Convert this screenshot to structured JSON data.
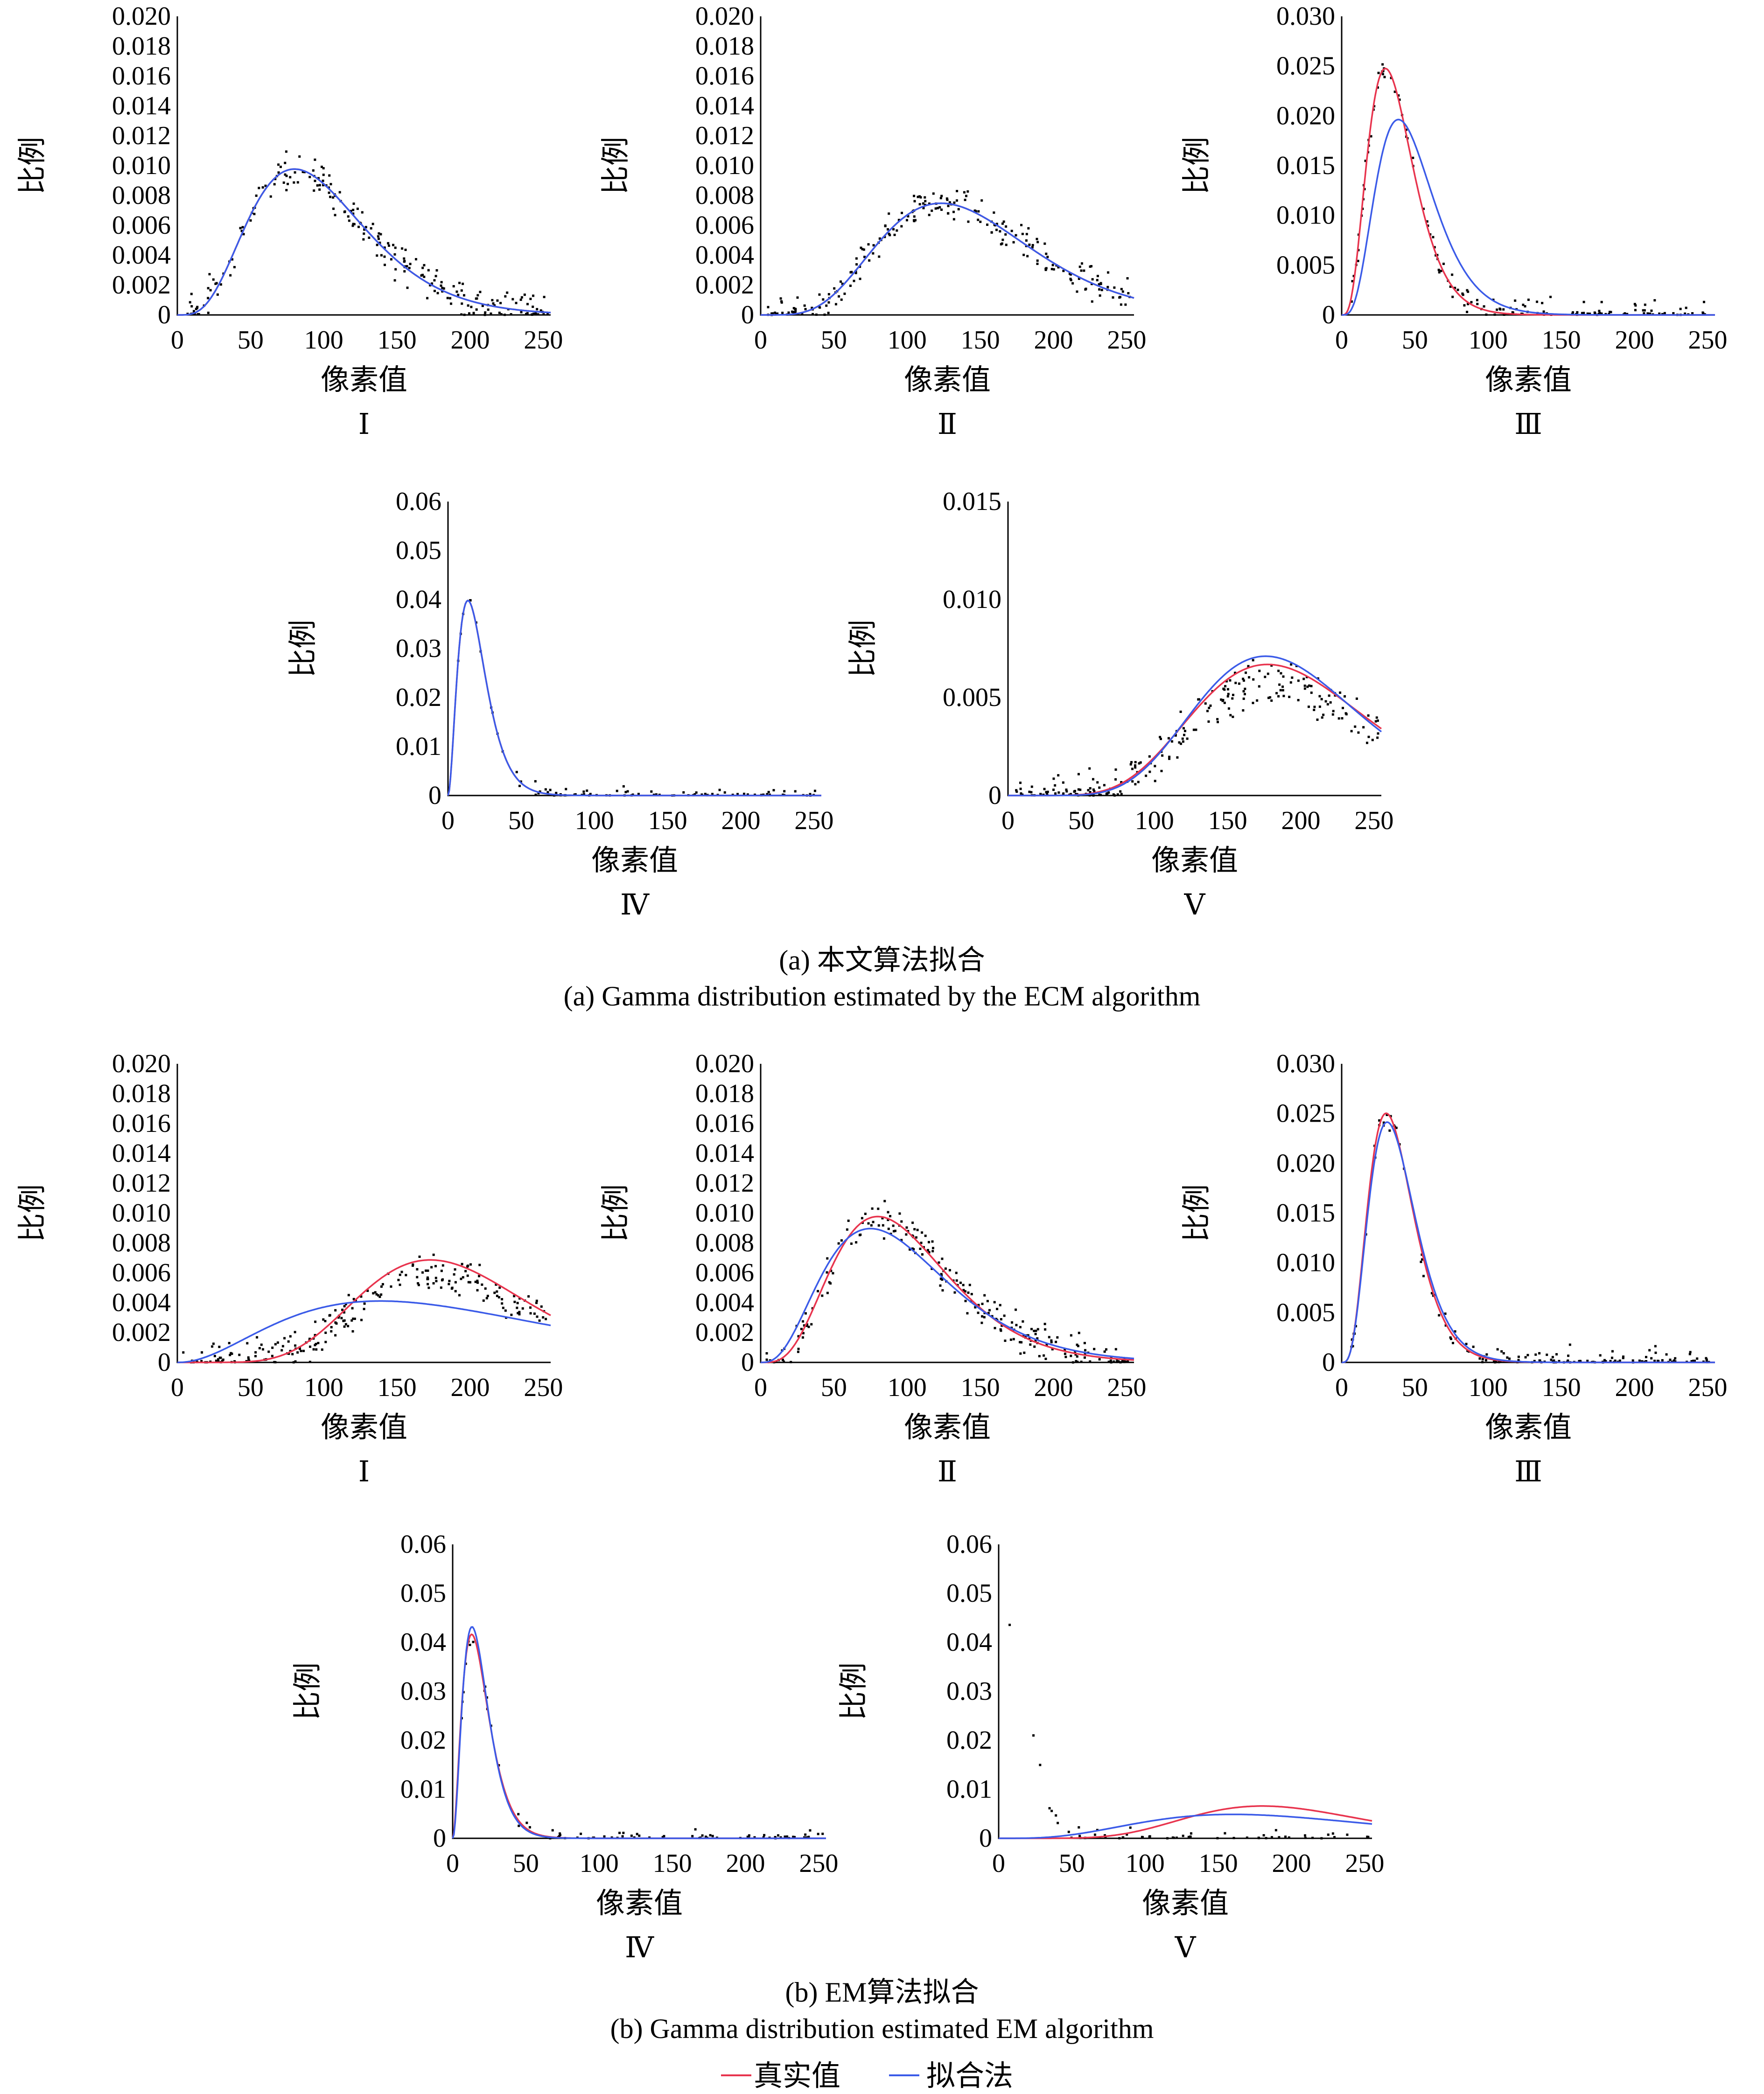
{
  "figure": {
    "caption_a_cn": "(a) 本文算法拟合",
    "caption_a_en": "(a) Gamma distribution estimated by the ECM algorithm",
    "caption_b_cn": "(b) EM算法拟合",
    "caption_b_en": "(b) Gamma distribution estimated EM algorithm"
  },
  "legend": {
    "items": [
      {
        "label": "真实值",
        "color": "#e8344e"
      },
      {
        "label": "拟合法",
        "color": "#3b5be8"
      }
    ]
  },
  "chart_data": [
    {
      "id": "a1",
      "type": "line",
      "sublabel": "Ⅰ",
      "xlabel": "像素值",
      "ylabel": "比例",
      "xlim": [
        0,
        255
      ],
      "ylim": [
        0,
        0.02
      ],
      "xticks": [
        "0",
        "50",
        "100",
        "150",
        "200",
        "250"
      ],
      "yticks": [
        "0",
        "0.002",
        "0.004",
        "0.006",
        "0.008",
        "0.010",
        "0.012",
        "0.014",
        "0.016",
        "0.018",
        "0.020"
      ],
      "series": [
        {
          "color": "#e8344e",
          "gamma": {
            "k": 5.0,
            "theta": 20.0
          }
        },
        {
          "color": "#3b5be8",
          "gamma": {
            "k": 5.0,
            "theta": 20.0
          }
        }
      ],
      "scatter": {
        "gamma": {
          "k": 5.0,
          "theta": 20.0
        },
        "noise": 0.0012,
        "n": 230,
        "seed": 11
      }
    },
    {
      "id": "a2",
      "type": "line",
      "sublabel": "Ⅱ",
      "xlabel": "像素值",
      "ylabel": "比例",
      "xlim": [
        0,
        255
      ],
      "ylim": [
        0,
        0.02
      ],
      "xticks": [
        "0",
        "50",
        "100",
        "150",
        "200",
        "250"
      ],
      "yticks": [
        "0",
        "0.002",
        "0.004",
        "0.006",
        "0.008",
        "0.010",
        "0.012",
        "0.014",
        "0.016",
        "0.018",
        "0.020"
      ],
      "series": [
        {
          "color": "#e8344e",
          "gamma": {
            "k": 6.5,
            "theta": 22.4
          }
        },
        {
          "color": "#3b5be8",
          "gamma": {
            "k": 6.5,
            "theta": 22.4
          }
        }
      ],
      "scatter": {
        "gamma": {
          "k": 6.5,
          "theta": 22.4
        },
        "noise": 0.0011,
        "n": 230,
        "seed": 23
      }
    },
    {
      "id": "a3",
      "type": "line",
      "sublabel": "Ⅲ",
      "xlabel": "像素值",
      "ylabel": "比例",
      "xlim": [
        0,
        255
      ],
      "ylim": [
        0,
        0.03
      ],
      "xticks": [
        "0",
        "50",
        "100",
        "150",
        "200",
        "250"
      ],
      "yticks": [
        "0",
        "0.005",
        "0.010",
        "0.015",
        "0.020",
        "0.025",
        "0.030"
      ],
      "series": [
        {
          "color": "#e8344e",
          "gamma": {
            "k": 4.6,
            "theta": 8.3
          }
        },
        {
          "color": "#3b5be8",
          "gamma": {
            "k": 4.8,
            "theta": 10.2
          }
        }
      ],
      "scatter": {
        "gamma": {
          "k": 4.6,
          "theta": 8.3
        },
        "noise": 0.0013,
        "n": 150,
        "seed": 37
      }
    },
    {
      "id": "a4",
      "type": "line",
      "sublabel": "Ⅳ",
      "xlabel": "像素值",
      "ylabel": "比例",
      "xlim": [
        0,
        255
      ],
      "ylim": [
        0,
        0.06
      ],
      "xticks": [
        "0",
        "50",
        "100",
        "150",
        "200",
        "250"
      ],
      "yticks": [
        "0",
        "0.01",
        "0.02",
        "0.03",
        "0.04",
        "0.05",
        "0.06"
      ],
      "series": [
        {
          "color": "#e8344e",
          "gamma": {
            "k": 3.0,
            "theta": 6.8
          }
        },
        {
          "color": "#3b5be8",
          "gamma": {
            "k": 3.0,
            "theta": 6.8
          }
        }
      ],
      "scatter": {
        "gamma": {
          "k": 3.0,
          "theta": 6.8
        },
        "noise": 0.0015,
        "n": 90,
        "seed": 41
      }
    },
    {
      "id": "a5",
      "type": "line",
      "sublabel": "Ⅴ",
      "xlabel": "像素值",
      "ylabel": "比例",
      "xlim": [
        0,
        255
      ],
      "ylim": [
        0,
        0.015
      ],
      "xticks": [
        "0",
        "50",
        "100",
        "150",
        "200",
        "250"
      ],
      "yticks": [
        "0",
        "0.005",
        "0.010",
        "0.015"
      ],
      "series": [
        {
          "color": "#e8344e",
          "gamma": {
            "k": 10.0,
            "theta": 19.7
          }
        },
        {
          "color": "#3b5be8",
          "gamma": {
            "k": 11.0,
            "theta": 17.6
          }
        }
      ],
      "scatter": {
        "gamma": {
          "k": 10.0,
          "theta": 19.7
        },
        "noise": 0.0012,
        "scale": 0.88,
        "n": 230,
        "seed": 53
      }
    },
    {
      "id": "b1",
      "type": "line",
      "sublabel": "Ⅰ",
      "xlabel": "像素值",
      "ylabel": "比例",
      "xlim": [
        0,
        255
      ],
      "ylim": [
        0,
        0.02
      ],
      "xticks": [
        "0",
        "50",
        "100",
        "150",
        "200",
        "250"
      ],
      "yticks": [
        "0",
        "0.002",
        "0.004",
        "0.006",
        "0.008",
        "0.010",
        "0.012",
        "0.014",
        "0.016",
        "0.018",
        "0.020"
      ],
      "series": [
        {
          "color": "#e8344e",
          "gamma": {
            "k": 10.0,
            "theta": 19.2
          }
        },
        {
          "color": "#3b5be8",
          "gamma": {
            "k": 3.2,
            "theta": 63.0
          }
        }
      ],
      "scatter": {
        "gamma": {
          "k": 10.0,
          "theta": 19.2
        },
        "noise": 0.0012,
        "scale": 0.88,
        "n": 230,
        "seed": 61
      }
    },
    {
      "id": "b2",
      "type": "line",
      "sublabel": "Ⅱ",
      "xlabel": "像素值",
      "ylabel": "比例",
      "xlim": [
        0,
        255
      ],
      "ylim": [
        0,
        0.02
      ],
      "xticks": [
        "0",
        "50",
        "100",
        "150",
        "200",
        "250"
      ],
      "yticks": [
        "0",
        "0.002",
        "0.004",
        "0.006",
        "0.008",
        "0.010",
        "0.012",
        "0.014",
        "0.016",
        "0.018",
        "0.020"
      ],
      "series": [
        {
          "color": "#e8344e",
          "gamma": {
            "k": 5.0,
            "theta": 20.0
          }
        },
        {
          "color": "#3b5be8",
          "gamma": {
            "k": 4.0,
            "theta": 25.0
          }
        }
      ],
      "scatter": {
        "gamma": {
          "k": 5.0,
          "theta": 20.0
        },
        "noise": 0.0012,
        "n": 230,
        "seed": 71
      }
    },
    {
      "id": "b3",
      "type": "line",
      "sublabel": "Ⅲ",
      "xlabel": "像素值",
      "ylabel": "比例",
      "xlim": [
        0,
        255
      ],
      "ylim": [
        0,
        0.03
      ],
      "xticks": [
        "0",
        "50",
        "100",
        "150",
        "200",
        "250"
      ],
      "yticks": [
        "0",
        "0.005",
        "0.010",
        "0.015",
        "0.020",
        "0.025",
        "0.030"
      ],
      "series": [
        {
          "color": "#e8344e",
          "gamma": {
            "k": 4.8,
            "theta": 8.0
          }
        },
        {
          "color": "#3b5be8",
          "gamma": {
            "k": 4.7,
            "theta": 8.4
          }
        }
      ],
      "scatter": {
        "gamma": {
          "k": 4.8,
          "theta": 8.0
        },
        "noise": 0.0013,
        "n": 150,
        "seed": 83
      }
    },
    {
      "id": "b4",
      "type": "line",
      "sublabel": "Ⅳ",
      "xlabel": "像素值",
      "ylabel": "比例",
      "xlim": [
        0,
        255
      ],
      "ylim": [
        0,
        0.06
      ],
      "xticks": [
        "0",
        "50",
        "100",
        "150",
        "200",
        "250"
      ],
      "yticks": [
        "0",
        "0.01",
        "0.02",
        "0.03",
        "0.04",
        "0.05",
        "0.06"
      ],
      "series": [
        {
          "color": "#e8344e",
          "gamma": {
            "k": 3.0,
            "theta": 6.5
          }
        },
        {
          "color": "#3b5be8",
          "gamma": {
            "k": 3.2,
            "theta": 6.0
          }
        }
      ],
      "scatter": {
        "gamma": {
          "k": 3.0,
          "theta": 6.6
        },
        "noise": 0.0015,
        "n": 80,
        "seed": 97
      }
    },
    {
      "id": "b5",
      "type": "line",
      "sublabel": "Ⅴ",
      "xlabel": "像素值",
      "ylabel": "比例",
      "xlim": [
        0,
        255
      ],
      "ylim": [
        0,
        0.06
      ],
      "xticks": [
        "0",
        "50",
        "100",
        "150",
        "200",
        "250"
      ],
      "yticks": [
        "0",
        "0.01",
        "0.02",
        "0.03",
        "0.04",
        "0.05",
        "0.06"
      ],
      "series": [
        {
          "color": "#e8344e",
          "gamma": {
            "k": 10.0,
            "theta": 20.0
          }
        },
        {
          "color": "#3b5be8",
          "gamma": {
            "k": 5.0,
            "theta": 40.0
          }
        }
      ],
      "scatter": {
        "gamma": {
          "k": 3.0,
          "theta": 5.5
        },
        "noise": 0.0018,
        "n": 60,
        "seed": 101
      }
    }
  ]
}
